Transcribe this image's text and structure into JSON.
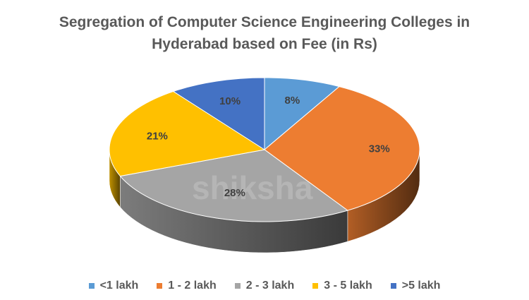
{
  "chart_data": {
    "type": "pie",
    "style": "3d",
    "title_line1": "Segregation of Computer Science Engineering Colleges in",
    "title_line2": "Hyderabad  based on Fee (in Rs)",
    "categories": [
      "<1 lakh",
      "1 - 2 lakh",
      "2 - 3 lakh",
      "3 - 5 lakh",
      ">5 lakh"
    ],
    "values": [
      8,
      33,
      28,
      21,
      10
    ],
    "labels": [
      "8%",
      "33%",
      "28%",
      "21%",
      "10%"
    ],
    "colors": [
      "#5B9BD5",
      "#ED7D31",
      "#A5A5A5",
      "#FFC000",
      "#4472C4"
    ],
    "legend_position": "bottom"
  },
  "watermark": "shiksha"
}
